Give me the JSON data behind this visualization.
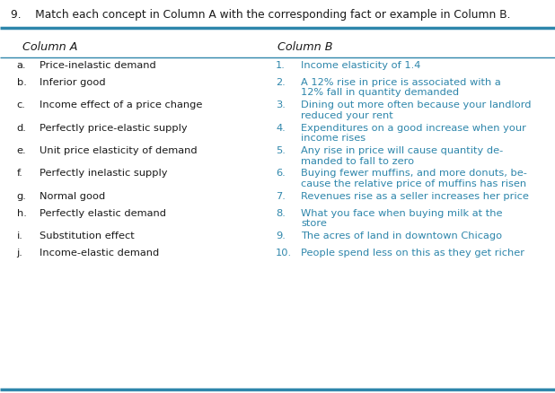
{
  "title": "9.    Match each concept in Column A with the corresponding fact or example in Column B.",
  "col_a_header": "Column A",
  "col_b_header": "Column B",
  "col_a_items": [
    [
      "a.",
      "Price-inelastic demand"
    ],
    [
      "b.",
      "Inferior good"
    ],
    [
      "c.",
      "Income effect of a price change"
    ],
    [
      "d.",
      "Perfectly price-elastic supply"
    ],
    [
      "e.",
      "Unit price elasticity of demand"
    ],
    [
      "f.",
      "Perfectly inelastic supply"
    ],
    [
      "g.",
      "Normal good"
    ],
    [
      "h.",
      "Perfectly elastic demand"
    ],
    [
      "i.",
      "Substitution effect"
    ],
    [
      "j.",
      "Income-elastic demand"
    ]
  ],
  "col_b_items": [
    [
      "1.",
      "Income elasticity of 1.4"
    ],
    [
      "2.",
      "A 12% rise in price is associated with a\n12% fall in quantity demanded"
    ],
    [
      "3.",
      "Dining out more often because your landlord\nreduced your rent"
    ],
    [
      "4.",
      "Expenditures on a good increase when your\nincome rises"
    ],
    [
      "5.",
      "Any rise in price will cause quantity de-\nmanded to fall to zero"
    ],
    [
      "6.",
      "Buying fewer muffins, and more donuts, be-\ncause the relative price of muffins has risen"
    ],
    [
      "7.",
      "Revenues rise as a seller increases her price"
    ],
    [
      "8.",
      "What you face when buying milk at the\nstore"
    ],
    [
      "9.",
      "The acres of land in downtown Chicago"
    ],
    [
      "10.",
      "People spend less on this as they get richer"
    ]
  ],
  "teal_color": "#2E86AB",
  "text_color": "#1a1a1a",
  "col_b_text_color": "#2E86AB",
  "bg_color": "#ffffff",
  "font_size": 8.2,
  "header_font_size": 9.2,
  "title_font_size": 8.8
}
